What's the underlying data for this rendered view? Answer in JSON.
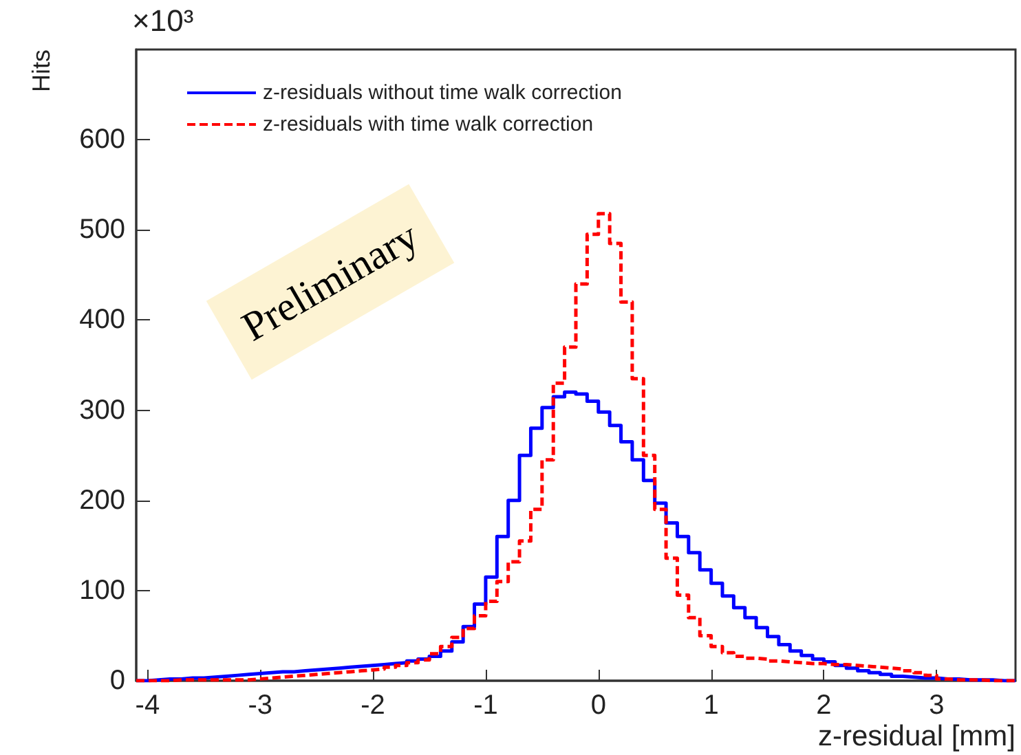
{
  "chart_data": {
    "type": "histogram",
    "xlabel": "z-residual [mm]",
    "ylabel": "Hits",
    "annotations": [
      "×10³",
      "Preliminary"
    ],
    "bins": [
      -4.1,
      -4.0,
      -3.9,
      -3.8,
      -3.7,
      -3.6,
      -3.5,
      -3.4,
      -3.3,
      -3.2,
      -3.1,
      -3.0,
      -2.9,
      -2.8,
      -2.7,
      -2.6,
      -2.5,
      -2.4,
      -2.3,
      -2.2,
      -2.1,
      -2.0,
      -1.9,
      -1.8,
      -1.7,
      -1.6,
      -1.5,
      -1.4,
      -1.3,
      -1.2,
      -1.1,
      -1.0,
      -0.9,
      -0.8,
      -0.7,
      -0.6,
      -0.5,
      -0.4,
      -0.3,
      -0.2,
      -0.1,
      0.0,
      0.1,
      0.2,
      0.3,
      0.4,
      0.5,
      0.6,
      0.7,
      0.8,
      0.9,
      1.0,
      1.1,
      1.2,
      1.3,
      1.4,
      1.5,
      1.6,
      1.7,
      1.8,
      1.9,
      2.0,
      2.1,
      2.2,
      2.3,
      2.4,
      2.5,
      2.6,
      2.7,
      2.8,
      2.9,
      3.0,
      3.1,
      3.2,
      3.3,
      3.4,
      3.5,
      3.6,
      3.7
    ],
    "series": [
      {
        "name": "z-residuals without time walk correction",
        "color": "#0000ff",
        "line_style": "solid",
        "values": [
          0,
          1,
          2,
          2,
          3,
          3,
          4,
          5,
          6,
          7,
          8,
          9,
          10,
          10,
          11,
          12,
          13,
          14,
          15,
          16,
          17,
          18,
          19,
          20,
          22,
          24,
          27,
          33,
          43,
          60,
          85,
          115,
          160,
          200,
          250,
          280,
          303,
          315,
          320,
          318,
          310,
          298,
          283,
          265,
          245,
          222,
          197,
          175,
          160,
          142,
          123,
          108,
          94,
          81,
          70,
          59,
          49,
          40,
          33,
          28,
          24,
          21,
          17,
          14,
          11,
          9,
          7,
          5,
          4,
          3,
          3,
          2,
          2,
          1,
          1,
          1,
          0,
          0
        ]
      },
      {
        "name": "z-residuals with time walk correction",
        "color": "#ff0000",
        "line_style": "dashed",
        "values": [
          0,
          0,
          0,
          1,
          1,
          1,
          1,
          1,
          1,
          1,
          2,
          3,
          4,
          5,
          6,
          7,
          8,
          9,
          10,
          11,
          12,
          13,
          15,
          17,
          20,
          23,
          30,
          38,
          48,
          58,
          72,
          88,
          110,
          132,
          155,
          190,
          245,
          330,
          370,
          440,
          495,
          518,
          485,
          420,
          335,
          250,
          190,
          136,
          95,
          70,
          50,
          38,
          31,
          27,
          25,
          24,
          22,
          21,
          20,
          19,
          19,
          18,
          18,
          17,
          16,
          15,
          14,
          13,
          11,
          9,
          6,
          2,
          1,
          1,
          1,
          0,
          0,
          0
        ]
      }
    ],
    "xlim": [
      -4.1,
      3.7
    ],
    "xticks": [
      -4,
      -3,
      -2,
      -1,
      0,
      1,
      2,
      3
    ],
    "ylim": [
      0,
      700
    ],
    "yticks": [
      0,
      100,
      200,
      300,
      400,
      500,
      600
    ],
    "grid": false,
    "legend": "top left",
    "marker": "none"
  }
}
